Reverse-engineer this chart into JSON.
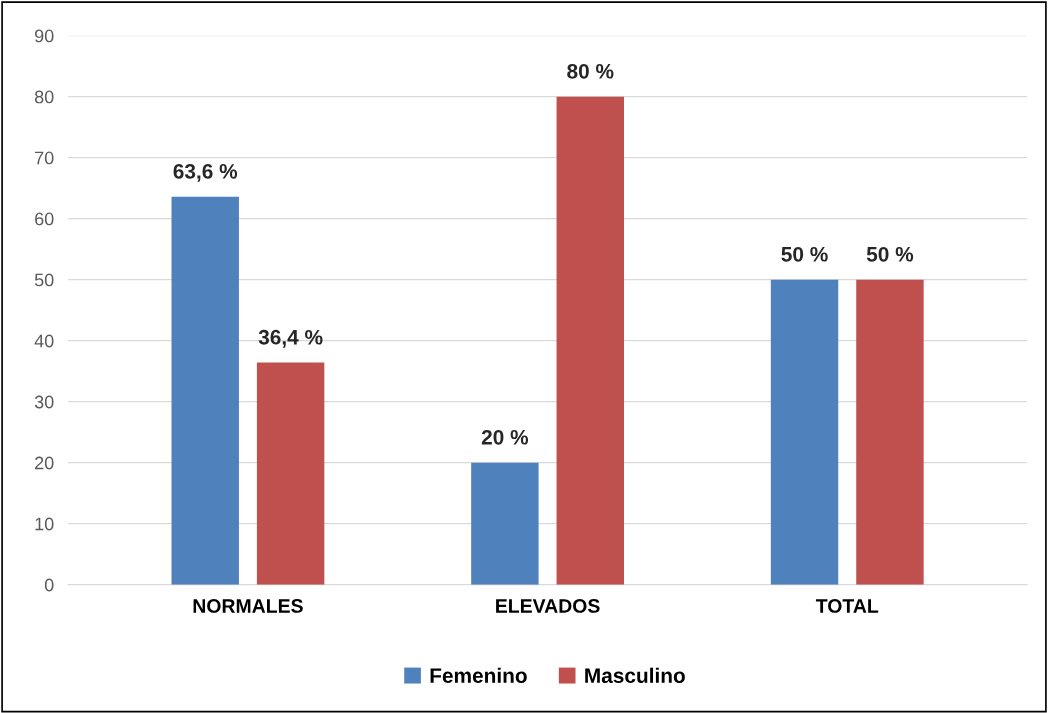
{
  "chart_data": {
    "type": "bar",
    "categories": [
      "NORMALES",
      "ELEVADOS",
      "TOTAL"
    ],
    "series": [
      {
        "name": "Femenino",
        "color": "#4f81bd",
        "values": [
          63.6,
          20,
          50
        ],
        "value_labels": [
          "63,6 %",
          "20 %",
          "50 %"
        ]
      },
      {
        "name": "Masculino",
        "color": "#c0504d",
        "values": [
          36.4,
          80,
          50
        ],
        "value_labels": [
          "36,4 %",
          "80 %",
          "50 %"
        ]
      }
    ],
    "ylim": [
      0,
      90
    ],
    "yticks": [
      0,
      10,
      20,
      30,
      40,
      50,
      60,
      70,
      80,
      90
    ],
    "grid": "y",
    "legend": "bottom"
  }
}
